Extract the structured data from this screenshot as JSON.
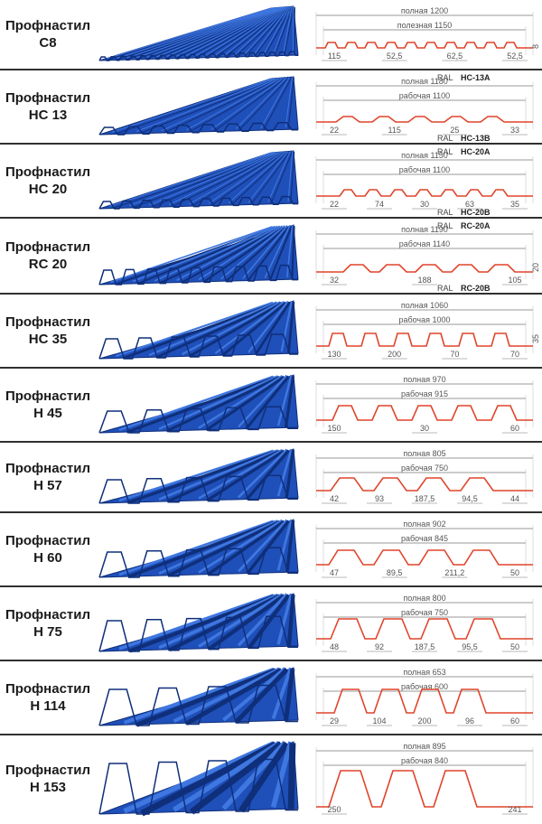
{
  "rows": [
    {
      "title": "Профнастил",
      "model": "С8",
      "full_label": "полная 1200",
      "work_label": "полезная 1150",
      "dims": [
        "115",
        "52,5",
        "62,5",
        "52,5"
      ],
      "height": "8",
      "ral": "",
      "code_a": "",
      "code_b": ""
    },
    {
      "title": "Профнастил",
      "model": "НС 13",
      "full_label": "полная 1180",
      "work_label": "рабочая 1100",
      "dims": [
        "22",
        "115",
        "25",
        "33"
      ],
      "height": "",
      "ral": "RAL",
      "code_a": "НС-13А",
      "code_b": "НС-13В"
    },
    {
      "title": "Профнастил",
      "model": "НС 20",
      "full_label": "полная 1150",
      "work_label": "рабочая 1100",
      "dims": [
        "22",
        "74",
        "30",
        "63",
        "35"
      ],
      "height": "",
      "ral": "RAL",
      "code_a": "НС-20А",
      "code_b": "НС-20В"
    },
    {
      "title": "Профнастил",
      "model": "RC 20",
      "full_label": "полная 1190",
      "work_label": "рабочая 1140",
      "dims": [
        "32",
        "188",
        "105"
      ],
      "height": "20",
      "ral": "RAL",
      "code_a": "RC-20A",
      "code_b": "RC-20B"
    },
    {
      "title": "Профнастил",
      "model": "НС 35",
      "full_label": "полная 1060",
      "work_label": "рабочая 1000",
      "dims": [
        "130",
        "200",
        "70",
        "70"
      ],
      "height": "35",
      "ral": "",
      "code_a": "",
      "code_b": ""
    },
    {
      "title": "Профнастил",
      "model": "Н 45",
      "full_label": "полная 970",
      "work_label": "рабочая 915",
      "dims": [
        "150",
        "30",
        "60"
      ],
      "height": "",
      "ral": "",
      "code_a": "",
      "code_b": ""
    },
    {
      "title": "Профнастил",
      "model": "Н 57",
      "full_label": "полная 805",
      "work_label": "рабочая 750",
      "dims": [
        "42",
        "93",
        "187,5",
        "94,5",
        "44"
      ],
      "height": "",
      "ral": "",
      "code_a": "",
      "code_b": ""
    },
    {
      "title": "Профнастил",
      "model": "Н 60",
      "full_label": "полная 902",
      "work_label": "рабочая 845",
      "dims": [
        "47",
        "89,5",
        "211,2",
        "50"
      ],
      "height": "",
      "ral": "",
      "code_a": "",
      "code_b": ""
    },
    {
      "title": "Профнастил",
      "model": "Н 75",
      "full_label": "полная 800",
      "work_label": "рабочая 750",
      "dims": [
        "48",
        "92",
        "187,5",
        "95,5",
        "50"
      ],
      "height": "",
      "ral": "",
      "code_a": "",
      "code_b": ""
    },
    {
      "title": "Профнастил",
      "model": "Н 114",
      "full_label": "полная 653",
      "work_label": "рабочая 600",
      "dims": [
        "29",
        "104",
        "200",
        "96",
        "60"
      ],
      "height": "",
      "ral": "",
      "code_a": "",
      "code_b": ""
    },
    {
      "title": "Профнастил",
      "model": "Н 153",
      "full_label": "полная 895",
      "work_label": "рабочая 840",
      "dims": [
        "250",
        "241"
      ],
      "height": "",
      "ral": "",
      "code_a": "",
      "code_b": ""
    }
  ],
  "colors": {
    "sheet": "#1f4fb8",
    "sheet_dark": "#0f2f7a",
    "sheet_light": "#3f77e0",
    "profile": "#e0442a",
    "dim": "#777777",
    "separator": "#303030"
  }
}
